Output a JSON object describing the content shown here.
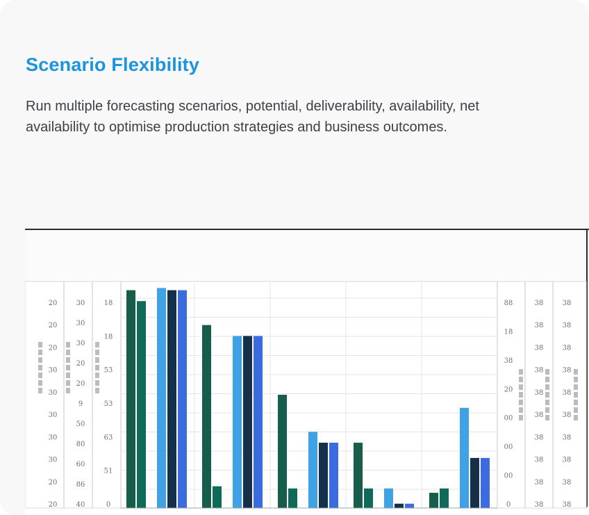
{
  "feature": {
    "title": "Scenario Flexibility",
    "description": "Run multiple forecasting scenarios, potential, deliverability, availability, net availability to optimise production strategies and business outcomes."
  },
  "chart_data": {
    "type": "bar",
    "groups": [
      {
        "values": [
          100,
          95,
          null,
          null,
          null
        ]
      },
      {
        "values": [
          null,
          null,
          101,
          100,
          100
        ]
      },
      {
        "values": [
          84,
          10,
          null,
          null,
          null
        ]
      },
      {
        "values": [
          null,
          null,
          79,
          79,
          79
        ]
      },
      {
        "values": [
          52,
          9,
          null,
          null,
          null
        ]
      },
      {
        "values": [
          null,
          null,
          35,
          30,
          30
        ]
      },
      {
        "values": [
          30,
          9,
          null,
          null,
          null
        ]
      },
      {
        "values": [
          null,
          null,
          9,
          2,
          2
        ]
      },
      {
        "values": [
          7,
          9,
          null,
          null,
          null
        ]
      },
      {
        "values": [
          null,
          null,
          46,
          23,
          23
        ]
      }
    ],
    "colors": [
      "#165e4b",
      "#0f6b57",
      "#3ea2e4",
      "#15304a",
      "#3a6ce0"
    ],
    "axes_left": [
      {
        "ticks": [
          "20",
          "20",
          "20",
          "30",
          "30",
          "30",
          "30",
          "30",
          "20",
          "20"
        ]
      },
      {
        "ticks": [
          "30",
          "30",
          "30",
          "20",
          "20",
          "9",
          "50",
          "80",
          "60",
          "86",
          "40"
        ]
      },
      {
        "ticks": [
          "18",
          "18",
          "53",
          "53",
          "63",
          "51",
          "0"
        ]
      }
    ],
    "axes_right": [
      {
        "ticks": [
          "88",
          "18",
          "38",
          "20",
          "00",
          "00",
          "00",
          "0"
        ]
      },
      {
        "ticks": [
          "38",
          "38",
          "38",
          "38",
          "38",
          "38",
          "38",
          "38",
          "38",
          "38"
        ]
      },
      {
        "ticks": [
          "38",
          "38",
          "38",
          "38",
          "38",
          "38",
          "38",
          "38",
          "38",
          "38"
        ]
      }
    ]
  }
}
